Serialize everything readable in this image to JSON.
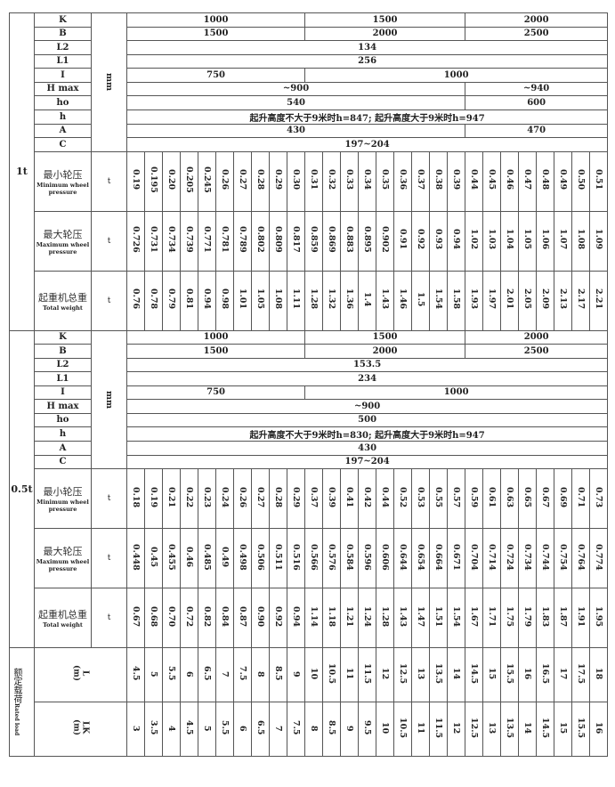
{
  "sections": [
    {
      "label": "1t",
      "unit": "mm",
      "params": [
        {
          "name": "K",
          "cells": [
            {
              "v": "1000",
              "span": 10
            },
            {
              "v": "1500",
              "span": 9
            },
            {
              "v": "2000",
              "span": 8
            }
          ]
        },
        {
          "name": "B",
          "cells": [
            {
              "v": "1500",
              "span": 10
            },
            {
              "v": "2000",
              "span": 9
            },
            {
              "v": "2500",
              "span": 8
            }
          ]
        },
        {
          "name": "L2",
          "cells": [
            {
              "v": "134",
              "span": 27
            }
          ]
        },
        {
          "name": "L1",
          "cells": [
            {
              "v": "256",
              "span": 27
            }
          ]
        },
        {
          "name": "I",
          "cells": [
            {
              "v": "750",
              "span": 10
            },
            {
              "v": "1000",
              "span": 17
            }
          ]
        },
        {
          "name": "H max",
          "cells": [
            {
              "v": "~900",
              "span": 19
            },
            {
              "v": "~940",
              "span": 8
            }
          ]
        },
        {
          "name": "ho",
          "cells": [
            {
              "v": "540",
              "span": 19
            },
            {
              "v": "600",
              "span": 8
            }
          ]
        },
        {
          "name": "h",
          "cells": [
            {
              "v": "起升高度不大于9米时h=847; 起升高度大于9米时h=947",
              "span": 27
            }
          ]
        },
        {
          "name": "A",
          "cells": [
            {
              "v": "430",
              "span": 19
            },
            {
              "v": "470",
              "span": 8
            }
          ]
        },
        {
          "name": "C",
          "cells": [
            {
              "v": "197~204",
              "span": 27
            }
          ]
        }
      ],
      "metrics": [
        {
          "cn": "最小轮压",
          "en": "Minimum wheel pressure",
          "unit": "t",
          "values": [
            "0.19",
            "0.195",
            "0.20",
            "0.205",
            "0.245",
            "0.26",
            "0.27",
            "0.28",
            "0.29",
            "0.30",
            "0.31",
            "0.32",
            "0.33",
            "0.34",
            "0.35",
            "0.36",
            "0.37",
            "0.38",
            "0.39",
            "0.44",
            "0.45",
            "0.46",
            "0.47",
            "0.48",
            "0.49",
            "0.50",
            "0.51"
          ]
        },
        {
          "cn": "最大轮压",
          "en": "Maximum wheel pressure",
          "unit": "t",
          "values": [
            "0.726",
            "0.731",
            "0.734",
            "0.739",
            "0.771",
            "0.781",
            "0.789",
            "0.802",
            "0.809",
            "0.817",
            "0.859",
            "0.869",
            "0.883",
            "0.895",
            "0.902",
            "0.91",
            "0.92",
            "0.93",
            "0.94",
            "1.02",
            "1.03",
            "1.04",
            "1.05",
            "1.06",
            "1.07",
            "1.08",
            "1.09"
          ]
        },
        {
          "cn": "起重机总重",
          "en": "Total weight",
          "unit": "t",
          "values": [
            "0.76",
            "0.78",
            "0.79",
            "0.81",
            "0.94",
            "0.98",
            "1.01",
            "1.05",
            "1.08",
            "1.11",
            "1.28",
            "1.32",
            "1.36",
            "1.4",
            "1.43",
            "1.46",
            "1.5",
            "1.54",
            "1.58",
            "1.93",
            "1.97",
            "2.01",
            "2.05",
            "2.09",
            "2.13",
            "2.17",
            "2.21"
          ]
        }
      ]
    },
    {
      "label": "0.5t",
      "unit": "mm",
      "params": [
        {
          "name": "K",
          "cells": [
            {
              "v": "1000",
              "span": 10
            },
            {
              "v": "1500",
              "span": 9
            },
            {
              "v": "2000",
              "span": 8
            }
          ]
        },
        {
          "name": "B",
          "cells": [
            {
              "v": "1500",
              "span": 10
            },
            {
              "v": "2000",
              "span": 9
            },
            {
              "v": "2500",
              "span": 8
            }
          ]
        },
        {
          "name": "L2",
          "cells": [
            {
              "v": "153.5",
              "span": 27
            }
          ]
        },
        {
          "name": "L1",
          "cells": [
            {
              "v": "234",
              "span": 27
            }
          ]
        },
        {
          "name": "I",
          "cells": [
            {
              "v": "750",
              "span": 10
            },
            {
              "v": "1000",
              "span": 17
            }
          ]
        },
        {
          "name": "H max",
          "cells": [
            {
              "v": "~900",
              "span": 27
            }
          ]
        },
        {
          "name": "ho",
          "cells": [
            {
              "v": "500",
              "span": 27
            }
          ]
        },
        {
          "name": "h",
          "cells": [
            {
              "v": "起升高度不大于9米时h=830; 起升高度大于9米时h=947",
              "span": 27
            }
          ]
        },
        {
          "name": "A",
          "cells": [
            {
              "v": "430",
              "span": 27
            }
          ]
        },
        {
          "name": "C",
          "cells": [
            {
              "v": "197~204",
              "span": 27
            }
          ]
        }
      ],
      "metrics": [
        {
          "cn": "最小轮压",
          "en": "Minimum wheel pressure",
          "unit": "t",
          "values": [
            "0.18",
            "0.19",
            "0.21",
            "0.22",
            "0.23",
            "0.24",
            "0.26",
            "0.27",
            "0.28",
            "0.29",
            "0.37",
            "0.39",
            "0.41",
            "0.42",
            "0.44",
            "0.52",
            "0.53",
            "0.55",
            "0.57",
            "0.59",
            "0.61",
            "0.63",
            "0.65",
            "0.67",
            "0.69",
            "0.71",
            "0.73"
          ]
        },
        {
          "cn": "最大轮压",
          "en": "Maximum wheel pressure",
          "unit": "t",
          "values": [
            "0.448",
            "0.45",
            "0.455",
            "0.46",
            "0.485",
            "0.49",
            "0.498",
            "0.506",
            "0.511",
            "0.516",
            "0.566",
            "0.576",
            "0.584",
            "0.596",
            "0.606",
            "0.644",
            "0.654",
            "0.664",
            "0.671",
            "0.704",
            "0.714",
            "0.724",
            "0.734",
            "0.744",
            "0.754",
            "0.764",
            "0.774"
          ]
        },
        {
          "cn": "起重机总重",
          "en": "Total weight",
          "unit": "t",
          "values": [
            "0.67",
            "0.68",
            "0.70",
            "0.72",
            "0.82",
            "0.84",
            "0.87",
            "0.90",
            "0.92",
            "0.94",
            "1.14",
            "1.18",
            "1.21",
            "1.24",
            "1.28",
            "1.43",
            "1.47",
            "1.51",
            "1.54",
            "1.67",
            "1.71",
            "1.75",
            "1.79",
            "1.83",
            "1.87",
            "1.91",
            "1.95"
          ]
        }
      ]
    }
  ],
  "rated_load": {
    "cn": "额定载荷",
    "en": "Rated load",
    "rows": [
      {
        "label": "L\n(m)",
        "values": [
          "4.5",
          "5",
          "5.5",
          "6",
          "6.5",
          "7",
          "7.5",
          "8",
          "8.5",
          "9",
          "10",
          "10.5",
          "11",
          "11.5",
          "12",
          "12.5",
          "13",
          "13.5",
          "14",
          "14.5",
          "15",
          "15.5",
          "16",
          "16.5",
          "17",
          "17.5",
          "18"
        ]
      },
      {
        "label": "LK\n(m)",
        "values": [
          "3",
          "3.5",
          "4",
          "4.5",
          "5",
          "5.5",
          "6",
          "6.5",
          "7",
          "7.5",
          "8",
          "8.5",
          "9",
          "9.5",
          "10",
          "10.5",
          "11",
          "11.5",
          "12",
          "12.5",
          "13",
          "13.5",
          "14",
          "14.5",
          "15",
          "15.5",
          "16"
        ]
      }
    ]
  }
}
